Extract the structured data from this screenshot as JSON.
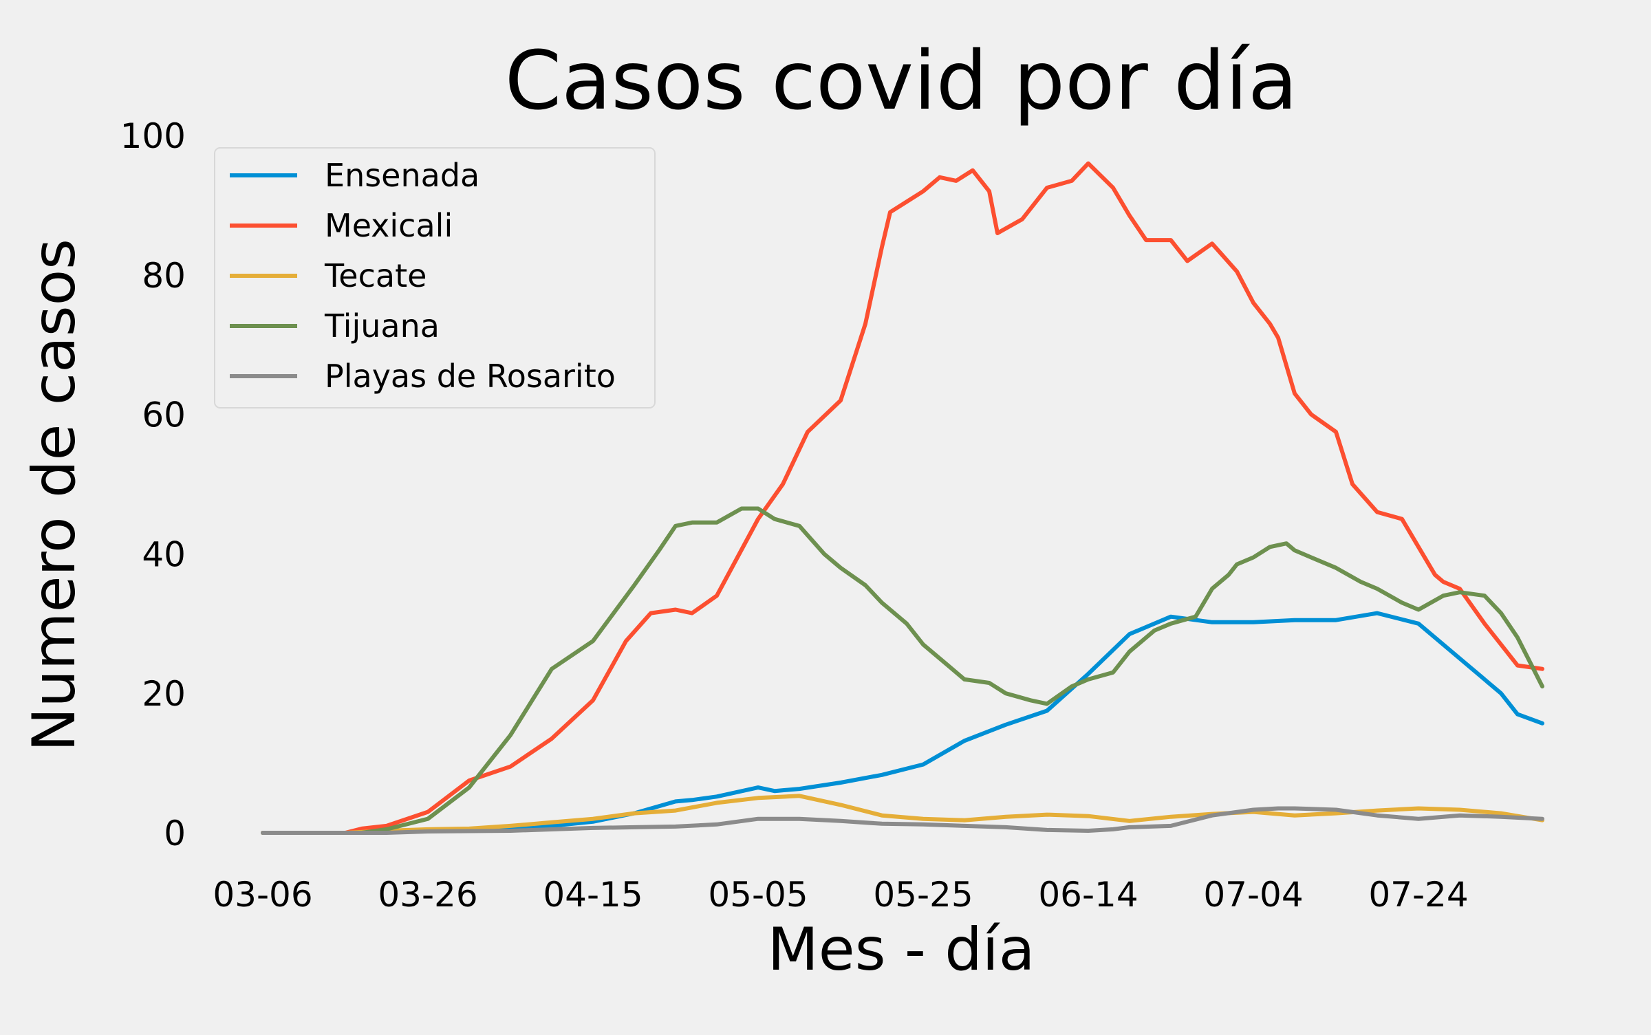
{
  "chart_data": {
    "type": "line",
    "title": "Casos covid por día",
    "xlabel": "Mes - día",
    "ylabel": "Numero de casos",
    "x_tick_labels": [
      "03-06",
      "03-26",
      "04-15",
      "05-05",
      "05-25",
      "06-14",
      "07-04",
      "07-24"
    ],
    "x_tick_day_index": [
      0,
      20,
      40,
      60,
      80,
      100,
      120,
      140
    ],
    "y_ticks": [
      0,
      20,
      40,
      60,
      80,
      100
    ],
    "ylim": [
      0,
      100
    ],
    "grid": false,
    "legend_position": "upper-left",
    "x_dates": "daily, starting 03-06 (index 0), 156 points, ending 08-09",
    "series": [
      {
        "name": "Ensenada",
        "color": "#008fd5",
        "x": [
          0,
          5,
          10,
          15,
          20,
          25,
          30,
          35,
          40,
          45,
          50,
          52,
          55,
          60,
          62,
          65,
          70,
          75,
          80,
          85,
          90,
          95,
          100,
          105,
          110,
          115,
          120,
          125,
          130,
          135,
          140,
          145,
          150,
          152,
          155
        ],
        "values": [
          0,
          0,
          0,
          0.1,
          0.3,
          0.5,
          0.7,
          1.0,
          1.6,
          2.8,
          4.5,
          4.7,
          5.2,
          6.5,
          6.0,
          6.3,
          7.2,
          8.3,
          9.8,
          13.2,
          15.5,
          17.5,
          22.8,
          28.5,
          31,
          30.2,
          30.2,
          30.5,
          30.5,
          31.5,
          30,
          25,
          20,
          17,
          15.7
        ]
      },
      {
        "name": "Mexicali",
        "color": "#fc4f30",
        "x": [
          0,
          10,
          12,
          15,
          20,
          25,
          30,
          35,
          40,
          44,
          47,
          50,
          52,
          55,
          60,
          63,
          66,
          70,
          73,
          75,
          76,
          78,
          80,
          82,
          84,
          86,
          88,
          89,
          92,
          95,
          98,
          100,
          103,
          105,
          107,
          110,
          112,
          115,
          118,
          120,
          122,
          123,
          125,
          127,
          130,
          132,
          135,
          138,
          140,
          142,
          143,
          145,
          148,
          150,
          152,
          155
        ],
        "values": [
          0,
          0,
          0.6,
          1.0,
          3.0,
          7.5,
          9.5,
          13.5,
          19.0,
          27.5,
          31.5,
          32.0,
          31.5,
          34.0,
          45.0,
          50.0,
          57.5,
          62.0,
          73.0,
          84.0,
          89.0,
          90.5,
          92.0,
          94.0,
          93.5,
          95.0,
          92.0,
          86.0,
          88.0,
          92.5,
          93.5,
          96.0,
          92.5,
          88.5,
          85.0,
          85.0,
          82.0,
          84.5,
          80.5,
          76.0,
          73.0,
          71.0,
          63.0,
          60.0,
          57.5,
          50.0,
          46.0,
          45.0,
          41.0,
          37.0,
          36.0,
          35.0,
          30.0,
          27.0,
          24.0,
          23.5
        ]
      },
      {
        "name": "Tecate",
        "color": "#e5ae38",
        "x": [
          0,
          10,
          15,
          20,
          25,
          30,
          35,
          40,
          45,
          50,
          55,
          60,
          65,
          70,
          75,
          80,
          85,
          90,
          95,
          100,
          105,
          110,
          115,
          120,
          125,
          130,
          135,
          140,
          145,
          150,
          155
        ],
        "values": [
          0,
          0,
          0.3,
          0.5,
          0.6,
          1.0,
          1.5,
          2.0,
          2.8,
          3.2,
          4.3,
          5.0,
          5.3,
          4.0,
          2.5,
          2.0,
          1.8,
          2.3,
          2.6,
          2.4,
          1.7,
          2.3,
          2.7,
          3.0,
          2.5,
          2.8,
          3.2,
          3.5,
          3.3,
          2.8,
          1.8
        ]
      },
      {
        "name": "Tijuana",
        "color": "#6d904f",
        "x": [
          0,
          12,
          15,
          20,
          25,
          30,
          35,
          40,
          45,
          48,
          50,
          52,
          55,
          58,
          60,
          62,
          65,
          68,
          70,
          73,
          75,
          78,
          80,
          83,
          85,
          88,
          90,
          93,
          95,
          98,
          100,
          103,
          105,
          108,
          110,
          113,
          115,
          117,
          118,
          120,
          122,
          124,
          125,
          127,
          130,
          133,
          135,
          138,
          140,
          143,
          145,
          148,
          150,
          152,
          155
        ],
        "values": [
          0,
          0,
          0.5,
          2.0,
          6.5,
          14.0,
          23.5,
          27.5,
          35.5,
          40.5,
          44.0,
          44.5,
          44.5,
          46.5,
          46.5,
          45.0,
          44.0,
          40.0,
          38.0,
          35.5,
          33.0,
          30.0,
          27.0,
          24.0,
          22.0,
          21.5,
          20.0,
          19.0,
          18.5,
          21.0,
          22.0,
          23.0,
          26.0,
          29.0,
          30.0,
          31.0,
          35.0,
          37.0,
          38.5,
          39.5,
          41.0,
          41.5,
          40.5,
          39.5,
          38.0,
          36.0,
          35.0,
          33.0,
          32.0,
          34.0,
          34.5,
          34.0,
          31.5,
          28.0,
          21.0
        ]
      },
      {
        "name": "Playas de Rosarito",
        "color": "#8b8b8b",
        "x": [
          0,
          15,
          20,
          30,
          40,
          45,
          50,
          55,
          60,
          62,
          65,
          70,
          75,
          80,
          85,
          90,
          95,
          100,
          103,
          105,
          110,
          115,
          120,
          123,
          125,
          130,
          135,
          140,
          145,
          150,
          155
        ],
        "values": [
          0,
          0,
          0.2,
          0.3,
          0.7,
          0.8,
          0.9,
          1.2,
          2.0,
          2.0,
          2.0,
          1.7,
          1.3,
          1.2,
          1.0,
          0.8,
          0.4,
          0.3,
          0.5,
          0.8,
          1.0,
          2.5,
          3.3,
          3.5,
          3.5,
          3.3,
          2.5,
          2.0,
          2.5,
          2.3,
          2.0
        ]
      }
    ]
  }
}
